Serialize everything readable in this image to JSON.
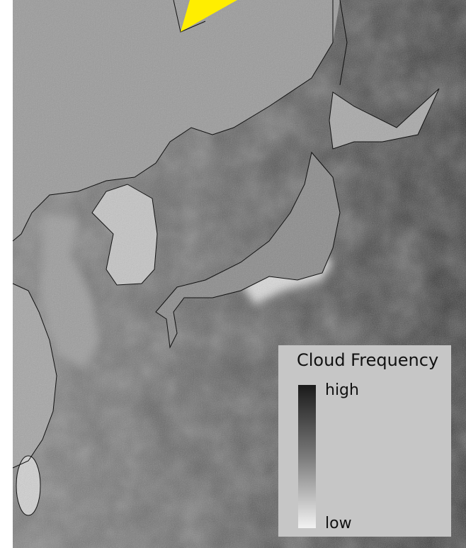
{
  "legend": {
    "title": "Cloud Frequency",
    "high": "high",
    "low": "low"
  }
}
